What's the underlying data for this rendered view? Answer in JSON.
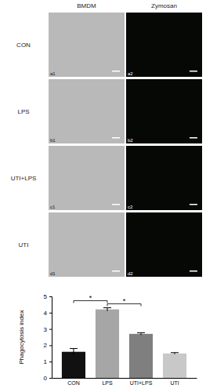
{
  "figure": {
    "column_titles": [
      "BMDM",
      "Zymosan"
    ],
    "row_labels": [
      "CON",
      "LPS",
      "UTI+LPS",
      "UTI"
    ],
    "panel_labels": [
      [
        "a1",
        "a2"
      ],
      [
        "b1",
        "b2"
      ],
      [
        "c1",
        "c2"
      ],
      [
        "d1",
        "d2"
      ]
    ]
  },
  "chart_data": {
    "type": "bar",
    "y_label": "Phagocytosis index",
    "categories": [
      "CON",
      "LPS",
      "UTI+LPS",
      "UTI"
    ],
    "values": [
      1.6,
      4.2,
      2.7,
      1.5
    ],
    "errors": [
      0.2,
      0.1,
      0.07,
      0.05
    ],
    "colors": [
      "#111111",
      "#a6a6a6",
      "#7f7f7f",
      "#c8c8c8"
    ],
    "ylim": [
      0,
      5
    ],
    "yticks": [
      0,
      1,
      2,
      3,
      4,
      5
    ],
    "significance": [
      {
        "between": [
          "CON",
          "LPS"
        ],
        "label": "*"
      },
      {
        "between": [
          "LPS",
          "UTI+LPS"
        ],
        "label": "*"
      }
    ]
  }
}
